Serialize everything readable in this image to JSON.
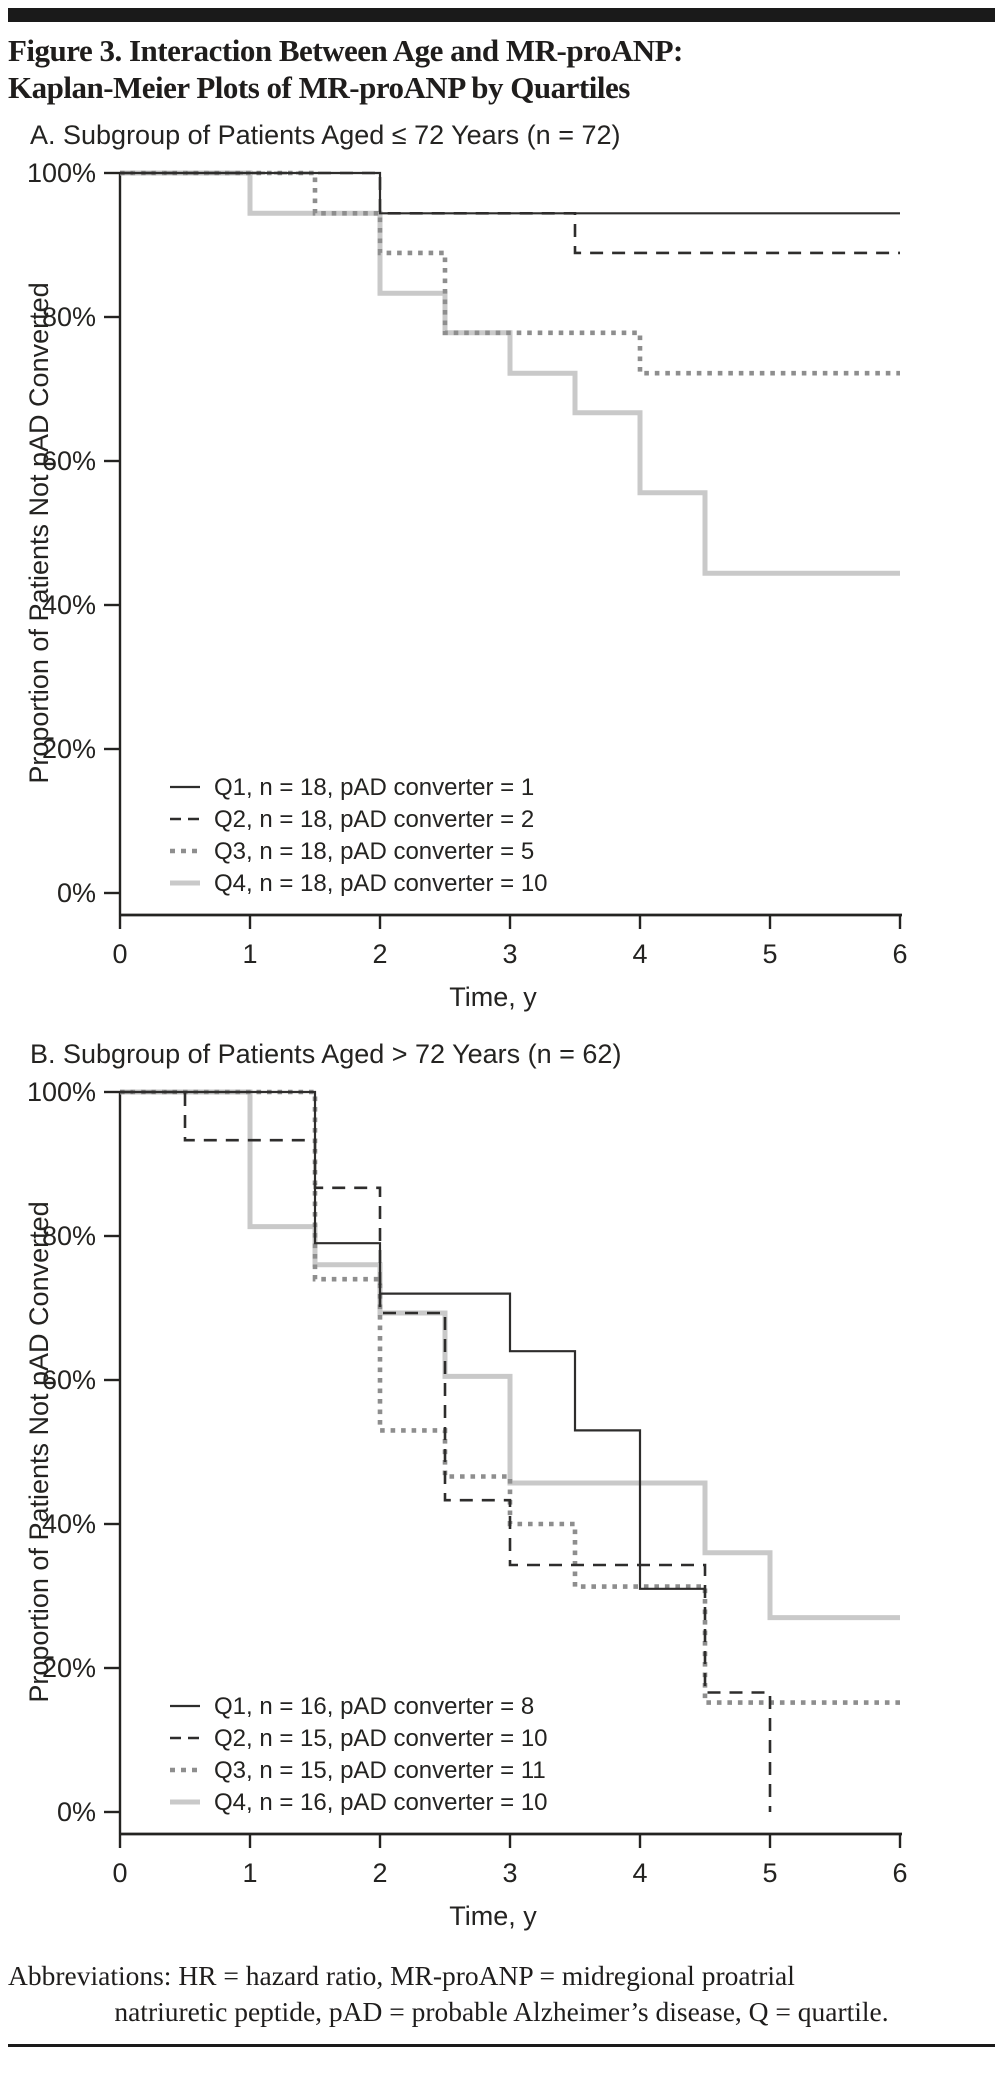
{
  "page": {
    "figure_title_line1": "Figure 3. Interaction Between Age and MR-proANP:",
    "figure_title_line2": "Kaplan-Meier Plots of MR-proANP by Quartiles",
    "abbreviations_line1": "Abbreviations: HR = hazard ratio, MR-proANP = midregional proatrial",
    "abbreviations_line2": "natriuretic peptide, pAD = probable Alzheimer’s disease, Q = quartile."
  },
  "colors": {
    "near_black": "#2e2d2c",
    "axis": "#242321",
    "mid_gray": "#8e8e8e",
    "light_gray": "#c9c9c9",
    "bar_black": "#1a1a1a"
  },
  "chart_data": [
    {
      "id": "A",
      "type": "line",
      "subtype": "kaplan-meier-step",
      "panel_title": "A. Subgroup of Patients Aged ≤ 72 Years (n = 72)",
      "xlabel": "Time, y",
      "ylabel": "Proportion of Patients Not pAD Converted",
      "xlim": [
        0,
        6
      ],
      "ylim": [
        0,
        100
      ],
      "grid": false,
      "legend_position": "bottom-left-inside",
      "x_ticks": [
        {
          "value": 0,
          "label": "0"
        },
        {
          "value": 1,
          "label": "1"
        },
        {
          "value": 2,
          "label": "2"
        },
        {
          "value": 3,
          "label": "3"
        },
        {
          "value": 4,
          "label": "4"
        },
        {
          "value": 5,
          "label": "5"
        },
        {
          "value": 6,
          "label": "6"
        }
      ],
      "y_ticks": [
        {
          "value": 0,
          "label": "0%"
        },
        {
          "value": 20,
          "label": "20%"
        },
        {
          "value": 40,
          "label": "40%"
        },
        {
          "value": 60,
          "label": "60%"
        },
        {
          "value": 80,
          "label": "80%"
        },
        {
          "value": 100,
          "label": "100%"
        }
      ],
      "series": [
        {
          "name": "Q1",
          "legend": "Q1, n = 18, pAD converter = 1",
          "style": "solid-thin",
          "color": "#2e2d2c",
          "width": 2.2,
          "steps": [
            [
              0,
              100
            ],
            [
              2,
              100
            ],
            [
              2,
              94.4
            ],
            [
              6,
              94.4
            ]
          ]
        },
        {
          "name": "Q2",
          "legend": "Q2, n = 18, pAD converter = 2",
          "style": "dashed",
          "color": "#2e2d2c",
          "width": 2.6,
          "steps": [
            [
              0,
              100
            ],
            [
              2,
              100
            ],
            [
              2,
              94.4
            ],
            [
              3.5,
              94.4
            ],
            [
              3.5,
              88.9
            ],
            [
              6,
              88.9
            ]
          ]
        },
        {
          "name": "Q3",
          "legend": "Q3, n = 18, pAD converter = 5",
          "style": "dotted",
          "color": "#8e8e8e",
          "width": 4.6,
          "steps": [
            [
              0,
              100
            ],
            [
              1.5,
              100
            ],
            [
              1.5,
              94.4
            ],
            [
              2,
              94.4
            ],
            [
              2,
              88.9
            ],
            [
              2.5,
              88.9
            ],
            [
              2.5,
              77.8
            ],
            [
              4,
              77.8
            ],
            [
              4,
              72.2
            ],
            [
              6,
              72.2
            ]
          ]
        },
        {
          "name": "Q4",
          "legend": "Q4, n = 18, pAD converter = 10",
          "style": "solid-thick",
          "color": "#c9c9c9",
          "width": 5,
          "steps": [
            [
              0,
              100
            ],
            [
              1,
              100
            ],
            [
              1,
              94.4
            ],
            [
              2,
              94.4
            ],
            [
              2,
              83.3
            ],
            [
              2.5,
              83.3
            ],
            [
              2.5,
              77.8
            ],
            [
              3,
              77.8
            ],
            [
              3,
              72.2
            ],
            [
              3.5,
              72.2
            ],
            [
              3.5,
              66.7
            ],
            [
              4,
              66.7
            ],
            [
              4,
              55.6
            ],
            [
              4.5,
              55.6
            ],
            [
              4.5,
              44.4
            ],
            [
              6,
              44.4
            ]
          ]
        }
      ]
    },
    {
      "id": "B",
      "type": "line",
      "subtype": "kaplan-meier-step",
      "panel_title": "B. Subgroup of Patients Aged > 72 Years (n = 62)",
      "xlabel": "Time, y",
      "ylabel": "Proportion of Patients Not pAD Converted",
      "xlim": [
        0,
        6
      ],
      "ylim": [
        0,
        100
      ],
      "grid": false,
      "legend_position": "bottom-left-inside",
      "x_ticks": [
        {
          "value": 0,
          "label": "0"
        },
        {
          "value": 1,
          "label": "1"
        },
        {
          "value": 2,
          "label": "2"
        },
        {
          "value": 3,
          "label": "3"
        },
        {
          "value": 4,
          "label": "4"
        },
        {
          "value": 5,
          "label": "5"
        },
        {
          "value": 6,
          "label": "6"
        }
      ],
      "y_ticks": [
        {
          "value": 0,
          "label": "0%"
        },
        {
          "value": 20,
          "label": "20%"
        },
        {
          "value": 40,
          "label": "40%"
        },
        {
          "value": 60,
          "label": "60%"
        },
        {
          "value": 80,
          "label": "80%"
        },
        {
          "value": 100,
          "label": "100%"
        }
      ],
      "series": [
        {
          "name": "Q1",
          "legend": "Q1, n = 16, pAD converter = 8",
          "style": "solid-thin",
          "color": "#2e2d2c",
          "width": 2.2,
          "steps": [
            [
              0,
              100
            ],
            [
              1.5,
              100
            ],
            [
              1.5,
              79
            ],
            [
              2,
              79
            ],
            [
              2,
              72
            ],
            [
              3,
              72
            ],
            [
              3,
              64
            ],
            [
              3.5,
              64
            ],
            [
              3.5,
              53
            ],
            [
              4,
              53
            ],
            [
              4,
              31
            ],
            [
              4.5,
              31
            ]
          ]
        },
        {
          "name": "Q2",
          "legend": "Q2, n = 15, pAD converter = 10",
          "style": "dashed",
          "color": "#2e2d2c",
          "width": 2.6,
          "steps": [
            [
              0,
              100
            ],
            [
              0.5,
              100
            ],
            [
              0.5,
              93.3
            ],
            [
              1.5,
              93.3
            ],
            [
              1.5,
              86.7
            ],
            [
              2,
              86.7
            ],
            [
              2,
              69.3
            ],
            [
              2.5,
              69.3
            ],
            [
              2.5,
              43.3
            ],
            [
              3,
              43.3
            ],
            [
              3,
              34.3
            ],
            [
              4.5,
              34.3
            ],
            [
              4.5,
              16.6
            ],
            [
              5,
              16.6
            ],
            [
              5,
              0
            ]
          ]
        },
        {
          "name": "Q3",
          "legend": "Q3, n = 15, pAD converter = 11",
          "style": "dotted",
          "color": "#8e8e8e",
          "width": 4.6,
          "steps": [
            [
              0,
              100
            ],
            [
              1.5,
              100
            ],
            [
              1.5,
              74
            ],
            [
              2,
              74
            ],
            [
              2,
              53
            ],
            [
              2.5,
              53
            ],
            [
              2.5,
              46.6
            ],
            [
              3,
              46.6
            ],
            [
              3,
              40
            ],
            [
              3.5,
              40
            ],
            [
              3.5,
              31.3
            ],
            [
              4.5,
              31.3
            ],
            [
              4.5,
              15.2
            ],
            [
              6,
              15.2
            ]
          ]
        },
        {
          "name": "Q4",
          "legend": "Q4, n = 16, pAD converter = 10",
          "style": "solid-thick",
          "color": "#c9c9c9",
          "width": 5,
          "steps": [
            [
              0,
              100
            ],
            [
              1,
              100
            ],
            [
              1,
              81.3
            ],
            [
              1.5,
              81.3
            ],
            [
              1.5,
              76
            ],
            [
              2,
              76
            ],
            [
              2,
              69.3
            ],
            [
              2.5,
              69.3
            ],
            [
              2.5,
              60.5
            ],
            [
              3,
              60.5
            ],
            [
              3,
              45.7
            ],
            [
              4.5,
              45.7
            ],
            [
              4.5,
              36
            ],
            [
              5,
              36
            ],
            [
              5,
              27
            ],
            [
              6,
              27
            ]
          ]
        }
      ]
    }
  ]
}
